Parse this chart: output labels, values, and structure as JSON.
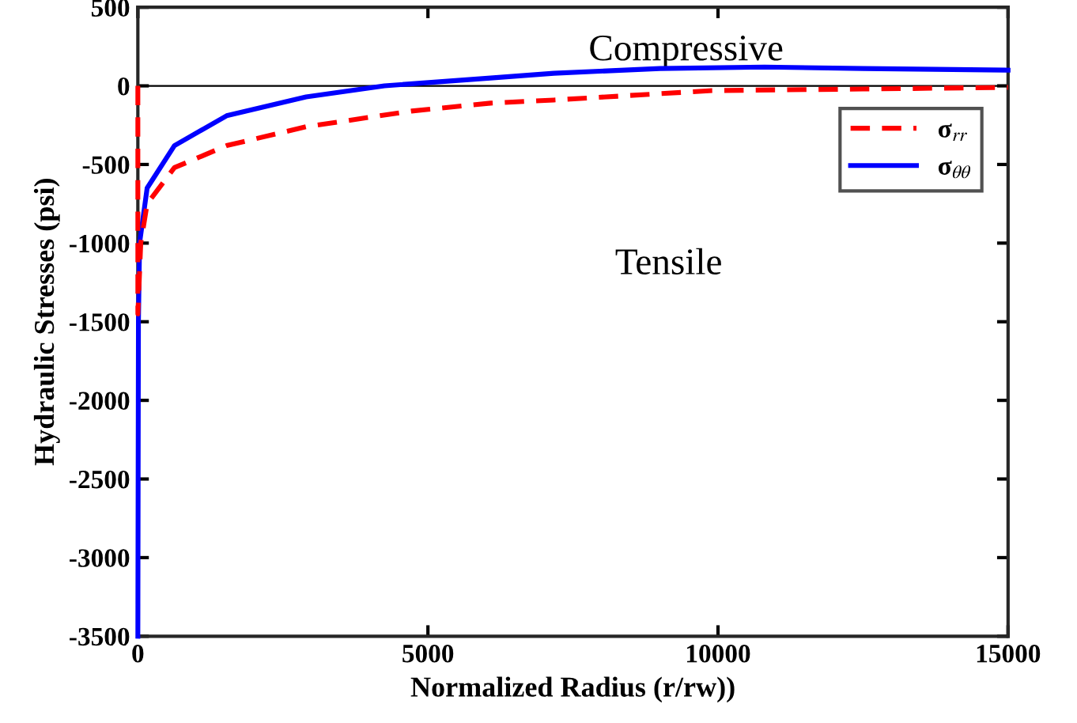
{
  "chart_data": {
    "type": "line",
    "xlabel": "Normalized Radius (r/rw))",
    "ylabel": "Hydraulic Stresses (psi)",
    "series": [
      {
        "name": "σ$_{rr}$",
        "color": "#ff0000",
        "line_style": "dashed",
        "x": [
          0,
          0,
          50,
          160,
          630,
          1530,
          2900,
          4720,
          6080,
          7170,
          9900,
          12500,
          15000
        ],
        "values": [
          0,
          -1450,
          -1000,
          -750,
          -520,
          -380,
          -260,
          -160,
          -110,
          -90,
          -30,
          -20,
          -10
        ]
      },
      {
        "name": "σ$_{θθ}$",
        "color": "#0000ff",
        "line_style": "solid",
        "x": [
          0,
          10,
          30,
          160,
          630,
          1530,
          2900,
          4250,
          6080,
          7170,
          9000,
          10800,
          12500,
          15000
        ],
        "values": [
          -3500,
          -1500,
          -1000,
          -650,
          -380,
          -190,
          -70,
          0,
          50,
          80,
          110,
          120,
          110,
          100
        ]
      }
    ],
    "xlim": [
      0,
      15000
    ],
    "xticks": [
      0,
      5000,
      10000,
      15000
    ],
    "ylim": [
      -3500,
      500
    ],
    "yticks": [
      -3500,
      -3000,
      -2500,
      -2000,
      -1500,
      -1000,
      -500,
      0,
      500
    ],
    "ref_lines": [
      {
        "axis": "y",
        "value": 0,
        "color": "#000000"
      }
    ],
    "annotations": [
      "Compressive",
      "Tensile"
    ],
    "legend": "top right",
    "grid": false
  }
}
